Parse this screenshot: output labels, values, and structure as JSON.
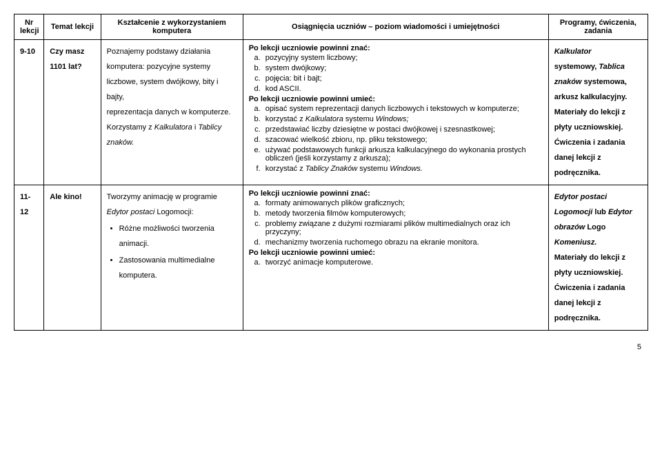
{
  "header": {
    "col1": "Nr lekcji",
    "col2": "Temat lekcji",
    "col3": "Kształcenie z wykorzystaniem komputera",
    "col4": "Osiągnięcia uczniów – poziom wiadomości i umiejętności",
    "col5": "Programy, ćwiczenia, zadania"
  },
  "row1": {
    "nr": "9-10",
    "temat1": "Czy masz",
    "temat2": "1101 lat?",
    "kszt_line1": "Poznajemy podstawy działania",
    "kszt_line2": "komputera: pozycyjne systemy",
    "kszt_line3": "liczbowe, system dwójkowy, bity i bajty,",
    "kszt_line4": "reprezentacja danych w komputerze.",
    "kszt_line5a": "Korzystamy z ",
    "kszt_line5b": "Kalkulatora",
    "kszt_line5c": " i ",
    "kszt_line5d": "Tablicy",
    "kszt_line6": "znaków.",
    "znac_head": "Po lekcji uczniowie powinni znać:",
    "znac_a": "pozycyjny system liczbowy;",
    "znac_b": "system dwójkowy;",
    "znac_c": "pojęcia: bit i bajt;",
    "znac_d": "kod ASCII.",
    "umiec_head": "Po lekcji uczniowie powinni umieć:",
    "umiec_a": "opisać system reprezentacji danych liczbowych i tekstowych w komputerze;",
    "umiec_b_pre": "korzystać z ",
    "umiec_b_it": "Kalkulatora",
    "umiec_b_post": " systemu ",
    "umiec_b_it2": "Windows;",
    "umiec_c": "przedstawiać liczby dziesiętne w postaci dwójkowej i szesnastkowej;",
    "umiec_d": "szacować wielkość zbioru, np. pliku tekstowego;",
    "umiec_e": "używać podstawowych funkcji arkusza kalkulacyjnego do wykonania prostych obliczeń (jeśli korzystamy z arkusza);",
    "umiec_f_pre": "korzystać z ",
    "umiec_f_it": "Tablicy Znaków",
    "umiec_f_post": " systemu ",
    "umiec_f_it2": "Windows.",
    "prog_1a": "Kalkulator",
    "prog_1b": "systemowy, ",
    "prog_1c": "Tablica",
    "prog_1d": "znaków",
    "prog_1e": " systemowa,",
    "prog_2": "arkusz kalkulacyjny.",
    "prog_3": "Materiały do lekcji z",
    "prog_4": "płyty uczniowskiej.",
    "prog_5": "Ćwiczenia i zadania",
    "prog_6": "danej lekcji z",
    "prog_7": "podręcznika."
  },
  "row2": {
    "nr": "11-12",
    "temat": "Ale kino!",
    "kszt_line1": "Tworzymy animację w programie",
    "kszt_line2a": "Edytor postaci",
    "kszt_line2b": " Logomocji:",
    "kszt_b1": "Różne możliwości tworzenia animacji.",
    "kszt_b2": "Zastosowania multimedialne komputera.",
    "znac_head": "Po lekcji uczniowie powinni znać:",
    "znac_a": "formaty animowanych plików graficznych;",
    "znac_b": "metody tworzenia filmów komputerowych;",
    "znac_c": "problemy związane z dużymi rozmiarami plików multimedialnych oraz ich przyczyny;",
    "znac_d": "mechanizmy tworzenia ruchomego obrazu na ekranie monitora.",
    "umiec_head": "Po lekcji uczniowie powinni umieć:",
    "umiec_a": "tworzyć animacje komputerowe.",
    "prog_1a": "Edytor postaci",
    "prog_1b": "Logomocji",
    "prog_1c": " lub ",
    "prog_1d": "Edytor",
    "prog_1e": "obrazów",
    "prog_1f": " Logo",
    "prog_1g": "Komeniusz.",
    "prog_2": "Materiały do lekcji z",
    "prog_3": "płyty uczniowskiej.",
    "prog_4": "Ćwiczenia i zadania",
    "prog_5": "danej lekcji z",
    "prog_6": "podręcznika."
  },
  "pagenum": "5"
}
